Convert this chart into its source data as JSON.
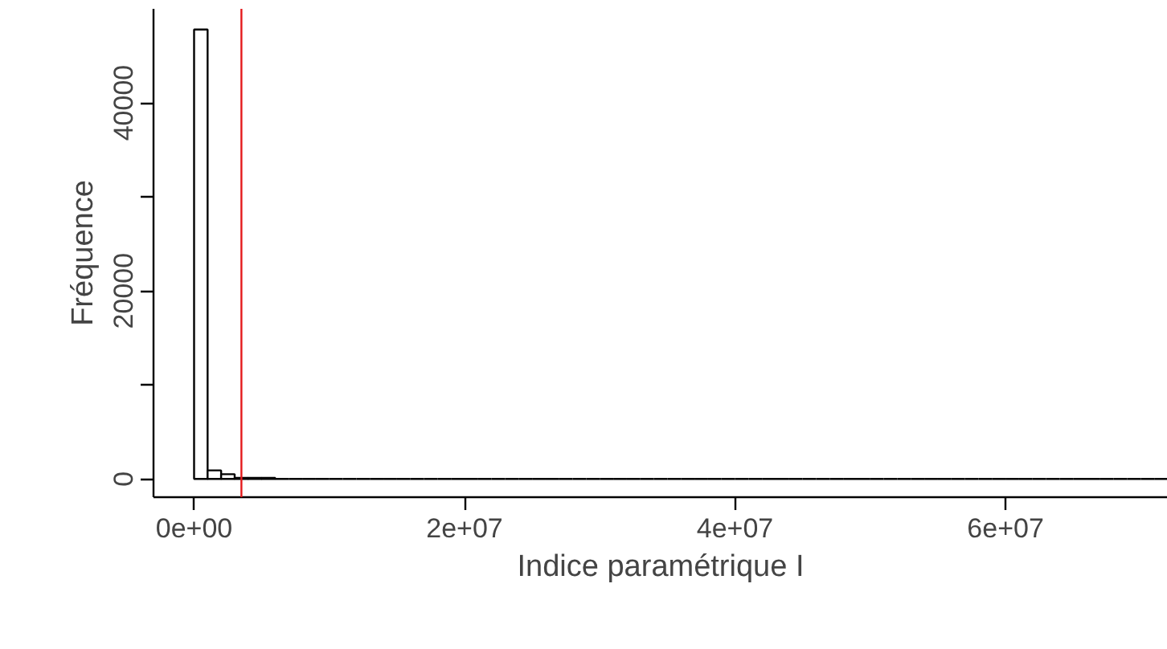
{
  "chart_data": {
    "type": "histogram",
    "xlabel": "Indice paramétrique I",
    "ylabel": "Fréquence",
    "bins": [
      0,
      1000000,
      2000000,
      3000000,
      4000000,
      5000000,
      6000000,
      7000000,
      8000000,
      9000000,
      10000000,
      11000000,
      12000000,
      13000000,
      14000000,
      15000000,
      16000000,
      17000000,
      18000000,
      19000000,
      20000000,
      21000000,
      22000000,
      23000000,
      24000000,
      25000000,
      26000000,
      27000000,
      28000000,
      29000000,
      30000000,
      31000000,
      32000000,
      33000000,
      34000000,
      35000000,
      36000000,
      37000000,
      38000000,
      39000000,
      40000000,
      41000000,
      42000000,
      43000000,
      44000000,
      45000000,
      46000000,
      47000000,
      48000000,
      49000000,
      50000000,
      51000000,
      52000000,
      53000000,
      54000000,
      55000000,
      56000000,
      57000000,
      58000000,
      59000000,
      60000000,
      61000000,
      62000000,
      63000000,
      64000000,
      65000000,
      66000000,
      67000000,
      68000000,
      69000000,
      70000000,
      71000000,
      72000000
    ],
    "values": [
      47800,
      900,
      500,
      100,
      100,
      100,
      0,
      0,
      0,
      0,
      0,
      0,
      0,
      0,
      0,
      0,
      0,
      0,
      0,
      0,
      0,
      0,
      0,
      0,
      0,
      0,
      0,
      0,
      0,
      0,
      0,
      0,
      0,
      0,
      0,
      0,
      0,
      0,
      0,
      0,
      0,
      0,
      0,
      0,
      0,
      0,
      0,
      0,
      0,
      0,
      0,
      0,
      0,
      0,
      0,
      0,
      0,
      0,
      0,
      0,
      0,
      0,
      0,
      0,
      0,
      0,
      0,
      0,
      0,
      0,
      0,
      0
    ],
    "xlim": [
      -3000000,
      72000000
    ],
    "ylim": [
      -1950,
      50000
    ],
    "xticks": [
      {
        "value": 0,
        "label": "0e+00"
      },
      {
        "value": 20000000,
        "label": "2e+07"
      },
      {
        "value": 40000000,
        "label": "4e+07"
      },
      {
        "value": 60000000,
        "label": "6e+07"
      }
    ],
    "yticks": [
      0,
      {
        "value": 10000,
        "label": null
      },
      20000,
      {
        "value": 30000,
        "label": null
      },
      40000
    ],
    "ref_lines": [
      {
        "axis": "x",
        "value": 3500000,
        "color": "#e41a1c"
      }
    ],
    "grid": false
  }
}
